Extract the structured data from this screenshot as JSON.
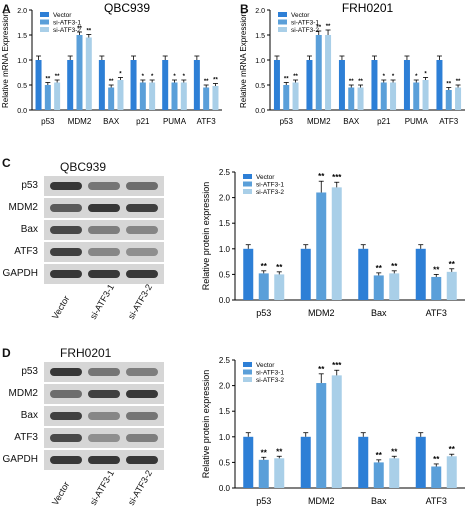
{
  "colors": {
    "vector": "#2d7fd6",
    "si1": "#5a9fd9",
    "si2": "#a9cfe8",
    "blot_bg": "#d6d6d6",
    "band": "#262626"
  },
  "legend_labels": [
    "Vector",
    "si-ATF3-1",
    "si-ATF3-2"
  ],
  "panels": {
    "A": {
      "letter": "A"
    },
    "B": {
      "letter": "B"
    },
    "C": {
      "letter": "C",
      "title": "QBC939",
      "rows": [
        "p53",
        "MDM2",
        "Bax",
        "ATF3",
        "GAPDH"
      ],
      "lanes": [
        "Vector",
        "si-ATF3-1",
        "si-ATF3-2"
      ]
    },
    "D": {
      "letter": "D",
      "title": "FRH0201",
      "rows": [
        "p53",
        "MDM2",
        "Bax",
        "ATF3",
        "GAPDH"
      ],
      "lanes": [
        "Vector",
        "si-ATF3-1",
        "si-ATF3-2"
      ]
    }
  },
  "chart_data": [
    {
      "id": "A",
      "type": "bar",
      "title": "QBC939",
      "ylabel": "Relative mRNA Expression",
      "categories": [
        "p53",
        "MDM2",
        "BAX",
        "p21",
        "PUMA",
        "ATF3"
      ],
      "ylim": [
        0,
        2.0
      ],
      "yticks": [
        "0.0",
        "0.5",
        "1.0",
        "1.5",
        "2.0"
      ],
      "legend": "top-left",
      "series": [
        {
          "name": "Vector",
          "values": [
            1.0,
            1.0,
            1.0,
            1.0,
            1.0,
            1.0
          ],
          "err": [
            0.08,
            0.08,
            0.08,
            0.08,
            0.08,
            0.08
          ],
          "sig": [
            "",
            "",
            "",
            "",
            "",
            ""
          ]
        },
        {
          "name": "si-ATF3-1",
          "values": [
            0.5,
            1.5,
            0.45,
            0.55,
            0.55,
            0.45
          ],
          "err": [
            0.05,
            0.06,
            0.05,
            0.05,
            0.05,
            0.05
          ],
          "sig": [
            "**",
            "**",
            "**",
            "*",
            "*",
            "**"
          ]
        },
        {
          "name": "si-ATF3-2",
          "values": [
            0.55,
            1.45,
            0.6,
            0.55,
            0.55,
            0.48
          ],
          "err": [
            0.05,
            0.06,
            0.05,
            0.05,
            0.05,
            0.05
          ],
          "sig": [
            "**",
            "**",
            "*",
            "*",
            "*",
            "**"
          ]
        }
      ]
    },
    {
      "id": "B",
      "type": "bar",
      "title": "FRH0201",
      "ylabel": "Relative mRNA Expression",
      "categories": [
        "p53",
        "MDM2",
        "BAX",
        "p21",
        "PUMA",
        "ATF3"
      ],
      "ylim": [
        0,
        2.0
      ],
      "yticks": [
        "0.0",
        "0.5",
        "1.0",
        "1.5",
        "2.0"
      ],
      "legend": "top-left",
      "series": [
        {
          "name": "Vector",
          "values": [
            1.0,
            1.0,
            1.0,
            1.0,
            1.0,
            1.0
          ],
          "err": [
            0.08,
            0.08,
            0.08,
            0.08,
            0.08,
            0.08
          ],
          "sig": [
            "",
            "",
            "",
            "",
            "",
            ""
          ]
        },
        {
          "name": "si-ATF3-1",
          "values": [
            0.5,
            1.5,
            0.45,
            0.55,
            0.55,
            0.4
          ],
          "err": [
            0.05,
            0.08,
            0.05,
            0.05,
            0.05,
            0.05
          ],
          "sig": [
            "**",
            "**",
            "**",
            "*",
            "*",
            "**"
          ]
        },
        {
          "name": "si-ATF3-2",
          "values": [
            0.55,
            1.5,
            0.45,
            0.55,
            0.6,
            0.45
          ],
          "err": [
            0.05,
            0.1,
            0.05,
            0.05,
            0.05,
            0.05
          ],
          "sig": [
            "**",
            "**",
            "**",
            "*",
            "*",
            "**"
          ]
        }
      ]
    },
    {
      "id": "C",
      "type": "bar",
      "title": "",
      "ylabel": "Relative protein expression",
      "categories": [
        "p53",
        "MDM2",
        "Bax",
        "ATF3"
      ],
      "ylim": [
        0,
        2.5
      ],
      "yticks": [
        "0.0",
        "0.5",
        "1.0",
        "1.5",
        "2.0",
        "2.5"
      ],
      "legend": "top-left",
      "series": [
        {
          "name": "Vector",
          "values": [
            1.0,
            1.0,
            1.0,
            1.0
          ],
          "err": [
            0.08,
            0.08,
            0.08,
            0.08
          ],
          "sig": [
            "",
            "",
            "",
            ""
          ]
        },
        {
          "name": "si-ATF3-1",
          "values": [
            0.52,
            2.1,
            0.48,
            0.45
          ],
          "err": [
            0.05,
            0.22,
            0.05,
            0.05
          ],
          "sig": [
            "**",
            "**",
            "**",
            "**"
          ]
        },
        {
          "name": "si-ATF3-2",
          "values": [
            0.5,
            2.2,
            0.52,
            0.55
          ],
          "err": [
            0.05,
            0.1,
            0.05,
            0.06
          ],
          "sig": [
            "**",
            "***",
            "**",
            "**"
          ]
        }
      ]
    },
    {
      "id": "D",
      "type": "bar",
      "title": "",
      "ylabel": "Relative protein expression",
      "categories": [
        "p53",
        "MDM2",
        "Bax",
        "ATF3"
      ],
      "ylim": [
        0,
        2.5
      ],
      "yticks": [
        "0.0",
        "0.5",
        "1.0",
        "1.5",
        "2.0",
        "2.5"
      ],
      "legend": "top-left",
      "series": [
        {
          "name": "Vector",
          "values": [
            1.0,
            1.0,
            1.0,
            1.0
          ],
          "err": [
            0.08,
            0.08,
            0.08,
            0.08
          ],
          "sig": [
            "",
            "",
            "",
            ""
          ]
        },
        {
          "name": "si-ATF3-1",
          "values": [
            0.55,
            2.05,
            0.5,
            0.42
          ],
          "err": [
            0.05,
            0.18,
            0.05,
            0.05
          ],
          "sig": [
            "**",
            "**",
            "**",
            "**"
          ]
        },
        {
          "name": "si-ATF3-2",
          "values": [
            0.58,
            2.2,
            0.58,
            0.62
          ],
          "err": [
            0.04,
            0.1,
            0.04,
            0.04
          ],
          "sig": [
            "**",
            "***",
            "**",
            "**"
          ]
        }
      ]
    }
  ]
}
